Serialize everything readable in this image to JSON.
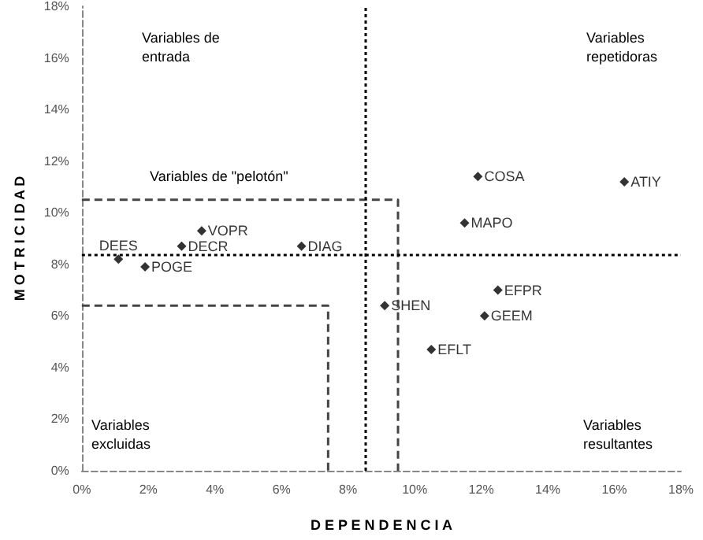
{
  "chart_data": {
    "type": "scatter",
    "xlabel": "D E P E N D E N C I A",
    "ylabel": "M O T R I C I D A D",
    "xlim": [
      0,
      18
    ],
    "ylim": [
      0,
      18
    ],
    "xticks": [
      {
        "value": 0,
        "label": "0%"
      },
      {
        "value": 2,
        "label": "2%"
      },
      {
        "value": 4,
        "label": "4%"
      },
      {
        "value": 6,
        "label": "6%"
      },
      {
        "value": 8,
        "label": "8%"
      },
      {
        "value": 10,
        "label": "10%"
      },
      {
        "value": 12,
        "label": "12%"
      },
      {
        "value": 14,
        "label": "14%"
      },
      {
        "value": 16,
        "label": "16%"
      },
      {
        "value": 18,
        "label": "18%"
      }
    ],
    "yticks": [
      {
        "value": 0,
        "label": "0%"
      },
      {
        "value": 2,
        "label": "2%"
      },
      {
        "value": 4,
        "label": "4%"
      },
      {
        "value": 6,
        "label": "6%"
      },
      {
        "value": 8,
        "label": "8%"
      },
      {
        "value": 10,
        "label": "10%"
      },
      {
        "value": 12,
        "label": "12%"
      },
      {
        "value": 14,
        "label": "14%"
      },
      {
        "value": 16,
        "label": "16%"
      },
      {
        "value": 18,
        "label": "18%"
      }
    ],
    "grid": false,
    "series": [
      {
        "color": "#000000",
        "marker": "diamond",
        "x": [
          1.1,
          1.9,
          3.0,
          3.6,
          6.6,
          11.9,
          16.3,
          11.5,
          9.1,
          12.5,
          12.1,
          10.5
        ],
        "values": [
          8.2,
          7.9,
          8.7,
          9.3,
          8.7,
          11.4,
          11.2,
          9.6,
          6.4,
          7.0,
          6.0,
          4.7
        ]
      },
      {
        "type": "line",
        "color": "#444444",
        "marker": "none",
        "line_style": "dashed",
        "x": [
          0,
          9.5,
          9.5
        ],
        "values": [
          10.5,
          10.5,
          0
        ]
      },
      {
        "type": "line",
        "color": "#444444",
        "marker": "none",
        "line_style": "dashed",
        "x": [
          0,
          7.4,
          7.4
        ],
        "values": [
          6.4,
          6.4,
          0
        ]
      }
    ],
    "ref_lines": [
      {
        "axis": "x",
        "value": 8.5,
        "color": "#000000",
        "line_style": "dotted"
      },
      {
        "axis": "y",
        "value": 8.4,
        "color": "#000000",
        "line_style": "dotted"
      }
    ],
    "annotations": [
      "Variables de\nentrada",
      "Variables\nrepetidoras",
      "Variables de \"pelotón\"",
      "Variables\nexcluidas",
      "Variables\nresultantes",
      {
        "text": "DEES",
        "x": 1.1,
        "y": 8.2
      },
      {
        "text": "POGE",
        "x": 1.9,
        "y": 7.9
      },
      {
        "text": "DECR",
        "x": 3.0,
        "y": 8.7
      },
      {
        "text": "VOPR",
        "x": 3.6,
        "y": 9.3
      },
      {
        "text": "DIAG",
        "x": 6.6,
        "y": 8.7
      },
      {
        "text": "COSA",
        "x": 11.9,
        "y": 11.4
      },
      {
        "text": "ATIY",
        "x": 16.3,
        "y": 11.2
      },
      {
        "text": "MAPO",
        "x": 11.5,
        "y": 9.6
      },
      {
        "text": "SHEN",
        "x": 9.1,
        "y": 6.4
      },
      {
        "text": "EFPR",
        "x": 12.5,
        "y": 7.0
      },
      {
        "text": "GEEM",
        "x": 12.1,
        "y": 6.0
      },
      {
        "text": "EFLT",
        "x": 10.5,
        "y": 4.7
      }
    ]
  }
}
